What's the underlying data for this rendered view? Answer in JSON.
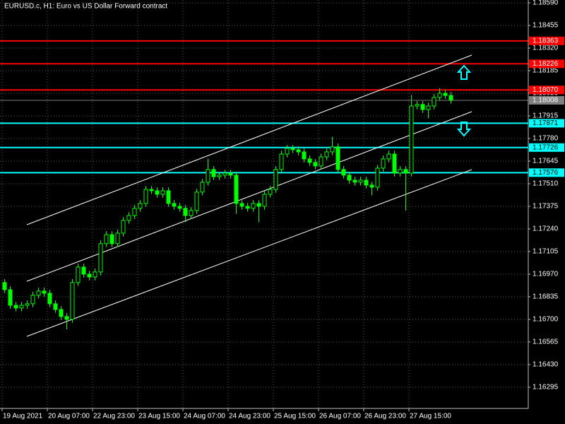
{
  "chart_data": {
    "type": "candlestick",
    "title": "EURUSD.c, H1:  Euro vs US Dollar Forward contract",
    "categories": [
      "19 Aug 2021",
      null,
      null,
      null,
      null,
      null,
      null,
      null,
      "20 Aug 07:00",
      null,
      null,
      null,
      null,
      null,
      null,
      null,
      "22 Aug 23:00",
      null,
      null,
      null,
      null,
      null,
      null,
      null,
      "23 Aug 15:00",
      null,
      null,
      null,
      null,
      null,
      null,
      null,
      "24 Aug 07:00",
      null,
      null,
      null,
      null,
      null,
      null,
      null,
      "24 Aug 23:00",
      null,
      null,
      null,
      null,
      null,
      null,
      null,
      "25 Aug 15:00",
      null,
      null,
      null,
      null,
      null,
      null,
      null,
      "26 Aug 07:00",
      null,
      null,
      null,
      null,
      null,
      null,
      null,
      "26 Aug 23:00",
      null,
      null,
      null,
      null,
      null,
      null,
      null,
      "27 Aug 15:00",
      null,
      null,
      null,
      null,
      null,
      null,
      null
    ],
    "open": [
      1.1692,
      1.16877,
      1.16784,
      1.16768,
      1.16784,
      1.16793,
      1.16844,
      1.16869,
      1.16856,
      1.16793,
      1.16759,
      1.16717,
      1.167,
      1.1692,
      1.17012,
      1.1697,
      1.16953,
      1.16983,
      1.17152,
      1.17206,
      1.17152,
      1.17215,
      1.17291,
      1.1732,
      1.17363,
      1.17392,
      1.17476,
      1.17468,
      1.17447,
      1.17468,
      1.17392,
      1.17375,
      1.17363,
      1.1732,
      1.1735,
      1.1746,
      1.17519,
      1.17595,
      1.17552,
      1.17561,
      1.17573,
      1.17561,
      1.17392,
      1.17375,
      1.17363,
      1.17392,
      1.17375,
      1.17447,
      1.17476,
      1.17595,
      1.17687,
      1.17721,
      1.17713,
      1.177,
      1.17658,
      1.17637,
      1.17616,
      1.1767,
      1.177,
      1.1773,
      1.17595,
      1.17561,
      1.17531,
      1.17519,
      1.17531,
      1.17502,
      1.17489,
      1.17603,
      1.17658,
      1.17687,
      1.17573,
      1.17595,
      1.17573,
      1.17974,
      1.17983,
      1.17953,
      1.17974,
      1.18025,
      1.1805,
      1.18037
    ],
    "high": [
      1.1694,
      1.16897,
      1.16804,
      1.16804,
      1.16813,
      1.16864,
      1.16889,
      1.16889,
      1.16876,
      1.16813,
      1.16779,
      1.16737,
      1.1694,
      1.17032,
      1.17032,
      1.1699,
      1.17003,
      1.17172,
      1.17226,
      1.17226,
      1.17235,
      1.17311,
      1.1734,
      1.17383,
      1.17412,
      1.17496,
      1.17496,
      1.17488,
      1.17488,
      1.17488,
      1.17412,
      1.17395,
      1.17383,
      1.1737,
      1.1748,
      1.17539,
      1.1766,
      1.17615,
      1.17581,
      1.17593,
      1.17593,
      1.17581,
      1.17412,
      1.17395,
      1.17412,
      1.17412,
      1.17467,
      1.17496,
      1.17615,
      1.17707,
      1.17741,
      1.17741,
      1.17733,
      1.1772,
      1.17678,
      1.17657,
      1.1769,
      1.1772,
      1.1779,
      1.1775,
      1.17615,
      1.17581,
      1.17551,
      1.17551,
      1.17551,
      1.17522,
      1.17623,
      1.17678,
      1.17707,
      1.17707,
      1.17615,
      1.17615,
      1.1804,
      1.18003,
      1.18003,
      1.17994,
      1.18045,
      1.1808,
      1.1807,
      1.18057
    ],
    "low": [
      1.16857,
      1.16764,
      1.16748,
      1.16748,
      1.16764,
      1.16773,
      1.16824,
      1.16836,
      1.16773,
      1.16739,
      1.16697,
      1.1664,
      1.1668,
      1.169,
      1.1695,
      1.16933,
      1.16933,
      1.16963,
      1.17132,
      1.17132,
      1.17132,
      1.17195,
      1.17271,
      1.173,
      1.17343,
      1.17372,
      1.17448,
      1.17427,
      1.17427,
      1.17372,
      1.17355,
      1.17343,
      1.1728,
      1.173,
      1.1733,
      1.1744,
      1.17499,
      1.17532,
      1.17532,
      1.17541,
      1.17541,
      1.1733,
      1.17355,
      1.17343,
      1.17343,
      1.1728,
      1.17355,
      1.17427,
      1.17456,
      1.17575,
      1.17667,
      1.17693,
      1.1768,
      1.17638,
      1.17617,
      1.17596,
      1.17596,
      1.1765,
      1.1768,
      1.17575,
      1.17541,
      1.17511,
      1.17499,
      1.17499,
      1.17482,
      1.1744,
      1.17469,
      1.17583,
      1.17638,
      1.17553,
      1.17553,
      1.1735,
      1.17553,
      1.17954,
      1.17933,
      1.179,
      1.17954,
      1.18005,
      1.18017,
      1.17988
    ],
    "close": [
      1.16877,
      1.16784,
      1.16768,
      1.16784,
      1.16793,
      1.16844,
      1.16869,
      1.16856,
      1.16793,
      1.16759,
      1.16717,
      1.167,
      1.1692,
      1.17012,
      1.1697,
      1.16953,
      1.16983,
      1.17152,
      1.17206,
      1.17152,
      1.17215,
      1.17291,
      1.1732,
      1.17363,
      1.17392,
      1.17476,
      1.17468,
      1.17447,
      1.17468,
      1.17392,
      1.17375,
      1.17363,
      1.1732,
      1.1735,
      1.1746,
      1.17519,
      1.17595,
      1.17552,
      1.17561,
      1.17573,
      1.17561,
      1.17392,
      1.17375,
      1.17363,
      1.17392,
      1.17375,
      1.17447,
      1.17476,
      1.17595,
      1.17687,
      1.17721,
      1.17713,
      1.177,
      1.17658,
      1.17637,
      1.17616,
      1.1767,
      1.177,
      1.1773,
      1.17595,
      1.17561,
      1.17531,
      1.17519,
      1.17531,
      1.17502,
      1.17489,
      1.17603,
      1.17658,
      1.17687,
      1.17573,
      1.17595,
      1.17573,
      1.17974,
      1.17983,
      1.17953,
      1.17974,
      1.18025,
      1.1805,
      1.18037,
      1.18008
    ],
    "color": "#00ff00",
    "ylim": [
      1.16168,
      1.18607
    ],
    "yticks": [
      {
        "value": 1.1859,
        "label": "1.18590"
      },
      1.18455,
      {
        "value": 1.1832,
        "label": "1.18320"
      },
      1.18185,
      {
        "value": 1.1805,
        "label": "1.18050"
      },
      1.17915,
      {
        "value": 1.1778,
        "label": "1.17780"
      },
      1.17645,
      {
        "value": 1.1751,
        "label": "1.17510"
      },
      1.17375,
      {
        "value": 1.1724,
        "label": "1.17240"
      },
      1.17105,
      {
        "value": 1.1697,
        "label": "1.16970"
      },
      1.16835,
      {
        "value": 1.167,
        "label": "1.16700"
      },
      1.16565,
      {
        "value": 1.1643,
        "label": "1.16430"
      },
      1.16295
    ],
    "grid": true,
    "levels": [
      {
        "value": 1.18363,
        "color": "#ff0000"
      },
      {
        "value": 1.18226,
        "color": "#ff0000"
      },
      {
        "value": {
          "value": 1.1807,
          "label": "1.18070"
        },
        "color": "#ff0000"
      },
      {
        "value": 1.17871,
        "color": "#00ffff"
      },
      {
        "value": 1.17726,
        "color": "#00ffff"
      },
      {
        "value": 1.17576,
        "color": "#00ffff"
      }
    ],
    "current_price": 1.18008,
    "current_color": "#808080"
  }
}
